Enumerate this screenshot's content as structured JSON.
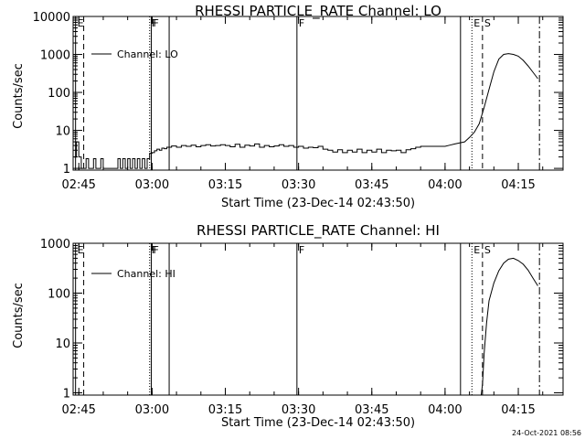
{
  "timestamp": "24-Oct-2021 08:56",
  "chart_data": [
    {
      "type": "line",
      "title": "RHESSI PARTICLE_RATE Channel: LO",
      "xlabel": "Start Time (23-Dec-14 02:43:50)",
      "ylabel": "Counts/sec",
      "yscale": "log",
      "xlim": [
        "02:43:50",
        "04:24:10"
      ],
      "ylim": [
        0.9,
        10000
      ],
      "x_ticks": [
        "02:45",
        "03:00",
        "03:15",
        "03:30",
        "03:45",
        "04:00",
        "04:15"
      ],
      "y_ticks": [
        "1",
        "10",
        "100",
        "1000",
        "10000"
      ],
      "legend": {
        "placement": "top-left",
        "entries": [
          "Channel: LO"
        ]
      },
      "series": [
        {
          "name": "Channel: LO",
          "x": [
            "02:44:00",
            "02:44:30",
            "02:45:00",
            "02:45:30",
            "02:46:00",
            "02:46:30",
            "02:47:00",
            "02:47:30",
            "02:48:00",
            "02:48:30",
            "02:49:00",
            "02:49:30",
            "02:50:00",
            "02:50:30",
            "02:51:00",
            "02:51:30",
            "02:52:00",
            "02:52:30",
            "02:53:00",
            "02:53:30",
            "02:54:00",
            "02:54:30",
            "02:55:00",
            "02:55:30",
            "02:56:00",
            "02:56:30",
            "02:57:00",
            "02:57:30",
            "02:58:00",
            "02:58:30",
            "02:59:00",
            "02:59:30",
            "03:00:00",
            "03:00:30",
            "03:01:00",
            "03:01:30",
            "03:02:00",
            "03:02:30",
            "03:03:00",
            "03:04:00",
            "03:05:00",
            "03:06:00",
            "03:07:00",
            "03:08:00",
            "03:09:00",
            "03:10:00",
            "03:11:00",
            "03:12:00",
            "03:13:00",
            "03:14:00",
            "03:15:00",
            "03:16:00",
            "03:17:00",
            "03:18:00",
            "03:19:00",
            "03:20:00",
            "03:21:00",
            "03:22:00",
            "03:23:00",
            "03:24:00",
            "03:25:00",
            "03:26:00",
            "03:27:00",
            "03:28:00",
            "03:29:00",
            "03:30:00",
            "03:31:00",
            "03:32:00",
            "03:33:00",
            "03:34:00",
            "03:35:00",
            "03:36:00",
            "03:37:00",
            "03:38:00",
            "03:39:00",
            "03:40:00",
            "03:41:00",
            "03:42:00",
            "03:43:00",
            "03:44:00",
            "03:45:00",
            "03:46:00",
            "03:47:00",
            "03:48:00",
            "03:49:00",
            "03:50:00",
            "03:51:00",
            "03:52:00",
            "03:53:00",
            "03:54:00",
            "03:55:00",
            "03:56:00",
            "03:57:00",
            "03:58:00",
            "03:59:00",
            "04:00:00",
            "04:01:00",
            "04:02:00",
            "04:03:00",
            "04:04:00",
            "04:05:00",
            "04:06:00",
            "04:07:00",
            "04:08:00",
            "04:09:00",
            "04:10:00",
            "04:11:00",
            "04:12:00",
            "04:13:00",
            "04:14:00",
            "04:15:00",
            "04:16:00",
            "04:17:00",
            "04:18:00",
            "04:19:00"
          ],
          "y": [
            2,
            5,
            2,
            1,
            1,
            1.8,
            1,
            1,
            1.8,
            1,
            1,
            1.8,
            1,
            1,
            1,
            1,
            1,
            1,
            1.8,
            1,
            1.8,
            1,
            1.8,
            1,
            1.8,
            1,
            1.8,
            1,
            1.8,
            1,
            1.8,
            2.5,
            2.6,
            2.9,
            3.2,
            3.0,
            3.4,
            3.3,
            3.6,
            3.9,
            3.6,
            4.0,
            3.8,
            4.1,
            3.7,
            4.0,
            4.2,
            3.9,
            4.0,
            4.2,
            4.0,
            3.7,
            4.3,
            3.6,
            4.1,
            3.9,
            4.4,
            3.6,
            4.0,
            3.7,
            3.9,
            4.2,
            3.8,
            4.0,
            3.6,
            3.8,
            3.4,
            3.6,
            3.5,
            3.8,
            3.2,
            3.0,
            2.7,
            3.1,
            2.6,
            3.0,
            2.7,
            3.2,
            2.6,
            3.0,
            2.7,
            3.2,
            2.6,
            3.0,
            2.9,
            3.0,
            2.6,
            3.1,
            3.3,
            3.6,
            3.8,
            3.8,
            3.8,
            3.8,
            3.8,
            3.8,
            4.1,
            4.4,
            4.7,
            5,
            6.5,
            9,
            15,
            40,
            120,
            350,
            750,
            1000,
            1050,
            1000,
            900,
            700,
            500,
            340,
            230
          ]
        }
      ],
      "markers": [
        {
          "label": "E",
          "time": "02:44:20",
          "style": "solid"
        },
        {
          "label": "",
          "time": "02:46:00",
          "style": "dashed"
        },
        {
          "label": "F",
          "time": "02:59:30",
          "style": "dotted"
        },
        {
          "label": "F",
          "time": "02:59:50",
          "style": "solid"
        },
        {
          "label": "",
          "time": "03:03:30",
          "style": "solid"
        },
        {
          "label": "F",
          "time": "03:29:40",
          "style": "solid"
        },
        {
          "label": "",
          "time": "04:03:10",
          "style": "solid"
        },
        {
          "label": "E",
          "time": "04:05:30",
          "style": "dotted"
        },
        {
          "label": "S",
          "time": "04:07:40",
          "style": "dashed"
        },
        {
          "label": "",
          "time": "04:19:20",
          "style": "dashdot"
        }
      ]
    },
    {
      "type": "line",
      "title": "RHESSI PARTICLE_RATE Channel: HI",
      "xlabel": "Start Time (23-Dec-14 02:43:50)",
      "ylabel": "Counts/sec",
      "yscale": "log",
      "xlim": [
        "02:43:50",
        "04:24:10"
      ],
      "ylim": [
        0.9,
        1000
      ],
      "x_ticks": [
        "02:45",
        "03:00",
        "03:15",
        "03:30",
        "03:45",
        "04:00",
        "04:15"
      ],
      "y_ticks": [
        "1",
        "10",
        "100",
        "1000"
      ],
      "legend": {
        "placement": "top-left",
        "entries": [
          "Channel: HI"
        ]
      },
      "series": [
        {
          "name": "Channel: HI",
          "x": [
            "04:07:20",
            "04:07:40",
            "04:08:00",
            "04:08:30",
            "04:09:00",
            "04:10:00",
            "04:11:00",
            "04:12:00",
            "04:13:00",
            "04:14:00",
            "04:15:00",
            "04:16:00",
            "04:17:00",
            "04:18:00",
            "04:19:00"
          ],
          "y": [
            0.8,
            1.5,
            6,
            25,
            70,
            160,
            280,
            400,
            480,
            500,
            450,
            380,
            290,
            200,
            140
          ]
        }
      ],
      "markers": [
        {
          "label": "E",
          "time": "02:44:20",
          "style": "solid"
        },
        {
          "label": "",
          "time": "02:46:00",
          "style": "dashed"
        },
        {
          "label": "F",
          "time": "02:59:30",
          "style": "dotted"
        },
        {
          "label": "F",
          "time": "02:59:50",
          "style": "solid"
        },
        {
          "label": "",
          "time": "03:03:30",
          "style": "solid"
        },
        {
          "label": "F",
          "time": "03:29:40",
          "style": "solid"
        },
        {
          "label": "",
          "time": "04:03:10",
          "style": "solid"
        },
        {
          "label": "E",
          "time": "04:05:30",
          "style": "dotted"
        },
        {
          "label": "S",
          "time": "04:07:40",
          "style": "dashed"
        },
        {
          "label": "",
          "time": "04:19:20",
          "style": "dashdot"
        }
      ]
    }
  ]
}
